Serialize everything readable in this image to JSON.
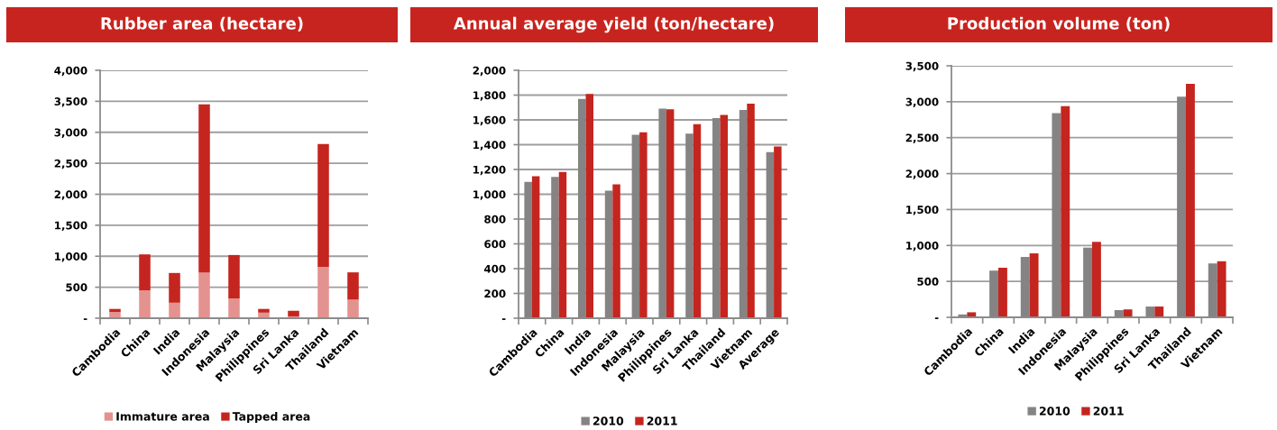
{
  "chart_data": [
    {
      "type": "bar",
      "title": "Rubber area (hectare)",
      "stacked": true,
      "categories": [
        "Cambodia",
        "China",
        "India",
        "Indonesia",
        "Malaysia",
        "Philippines",
        "Sri Lanka",
        "Thailand",
        "Vietnam"
      ],
      "series": [
        {
          "name": "Immature area",
          "color": "#e4928f",
          "values": [
            100,
            450,
            250,
            740,
            320,
            90,
            30,
            830,
            300
          ]
        },
        {
          "name": "Tapped area",
          "color": "#c5251f",
          "values": [
            50,
            580,
            480,
            2710,
            700,
            60,
            90,
            1980,
            440
          ]
        }
      ],
      "ylim": [
        0,
        4000
      ],
      "yticks": [
        {
          "value": 0,
          "label": "-"
        },
        500,
        {
          "value": 1000,
          "label": "1,000"
        },
        {
          "value": 1500,
          "label": "1,500"
        },
        {
          "value": 2000,
          "label": "2,000"
        },
        {
          "value": 2500,
          "label": "2,500"
        },
        {
          "value": 3000,
          "label": "3,000"
        },
        {
          "value": 3500,
          "label": "3,500"
        },
        {
          "value": 4000,
          "label": "4,000"
        }
      ],
      "grid": "y",
      "legend": "bottom"
    },
    {
      "type": "bar",
      "title": "Annual average yield (ton/hectare)",
      "categories": [
        "Cambodia",
        "China",
        "India",
        "Indonesia",
        "Malaysia",
        "Philippines",
        "Sri Lanka",
        "Thailand",
        "Vietnam",
        "Average"
      ],
      "series": [
        {
          "name": "2010",
          "color": "#858384",
          "values": [
            1100,
            1140,
            1770,
            1030,
            1480,
            1690,
            1490,
            1615,
            1680,
            1340
          ]
        },
        {
          "name": "2011",
          "color": "#c5251f",
          "values": [
            1145,
            1180,
            1810,
            1080,
            1500,
            1685,
            1565,
            1640,
            1730,
            1385
          ]
        }
      ],
      "ylim": [
        0,
        2000
      ],
      "yticks": [
        {
          "value": 0,
          "label": "-"
        },
        200,
        400,
        600,
        800,
        {
          "value": 1000,
          "label": "1,000"
        },
        {
          "value": 1200,
          "label": "1,200"
        },
        {
          "value": 1400,
          "label": "1,400"
        },
        {
          "value": 1600,
          "label": "1,600"
        },
        {
          "value": 1800,
          "label": "1,800"
        },
        {
          "value": 2000,
          "label": "2,000"
        }
      ],
      "grid": "y",
      "legend": "bottom"
    },
    {
      "type": "bar",
      "title": "Production volume (ton)",
      "categories": [
        "Cambodia",
        "China",
        "India",
        "Indonesia",
        "Malaysia",
        "Philippines",
        "Sri Lanka",
        "Thailand",
        "Vietnam"
      ],
      "series": [
        {
          "name": "2010",
          "color": "#858384",
          "values": [
            40,
            650,
            840,
            2840,
            970,
            100,
            150,
            3070,
            750
          ]
        },
        {
          "name": "2011",
          "color": "#c5251f",
          "values": [
            70,
            690,
            890,
            2940,
            1050,
            110,
            150,
            3250,
            780
          ]
        }
      ],
      "ylim": [
        0,
        3500
      ],
      "yticks": [
        {
          "value": 0,
          "label": "-"
        },
        500,
        {
          "value": 1000,
          "label": "1,000"
        },
        {
          "value": 1500,
          "label": "1,500"
        },
        {
          "value": 2000,
          "label": "2,000"
        },
        {
          "value": 2500,
          "label": "2,500"
        },
        {
          "value": 3000,
          "label": "3,000"
        },
        {
          "value": 3500,
          "label": "3,500"
        }
      ],
      "grid": "y",
      "legend": "bottom"
    }
  ]
}
